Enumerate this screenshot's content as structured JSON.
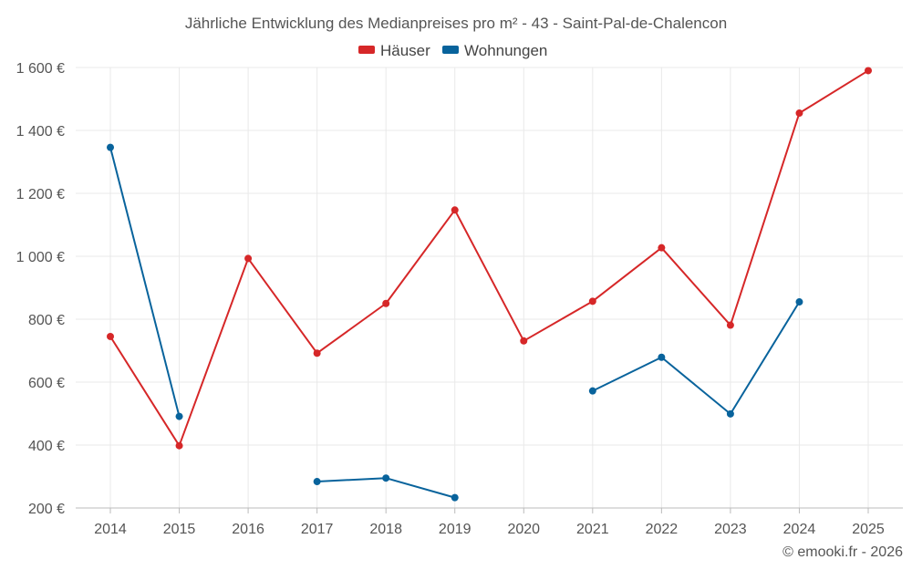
{
  "chart_data": {
    "type": "line",
    "title": "Jährliche Entwicklung des Medianpreises pro m² - 43 - Saint-Pal-de-Chalencon",
    "categories": [
      "2014",
      "2015",
      "2016",
      "2017",
      "2018",
      "2019",
      "2020",
      "2021",
      "2022",
      "2023",
      "2024",
      "2025"
    ],
    "x": [
      2014,
      2015,
      2016,
      2017,
      2018,
      2019,
      2020,
      2021,
      2022,
      2023,
      2024,
      2025
    ],
    "ylim": [
      200,
      1600
    ],
    "yticks": [
      200,
      400,
      600,
      800,
      1000,
      1200,
      1400,
      1600
    ],
    "ytick_labels": [
      "200 €",
      "400 €",
      "600 €",
      "800 €",
      "1 000 €",
      "1 200 €",
      "1 400 €",
      "1 600 €"
    ],
    "xlabel": "",
    "ylabel": "",
    "grid": true,
    "legend_position": "top-center",
    "series": [
      {
        "name": "Häuser",
        "color": "#d62728",
        "values": [
          745,
          398,
          993,
          692,
          850,
          1147,
          731,
          857,
          1027,
          781,
          1455,
          1590
        ]
      },
      {
        "name": "Wohnungen",
        "color": "#08639c",
        "values": [
          1346,
          491,
          null,
          284,
          295,
          233,
          null,
          572,
          679,
          499,
          855,
          null
        ]
      }
    ]
  },
  "credit": "© emooki.fr - 2026"
}
